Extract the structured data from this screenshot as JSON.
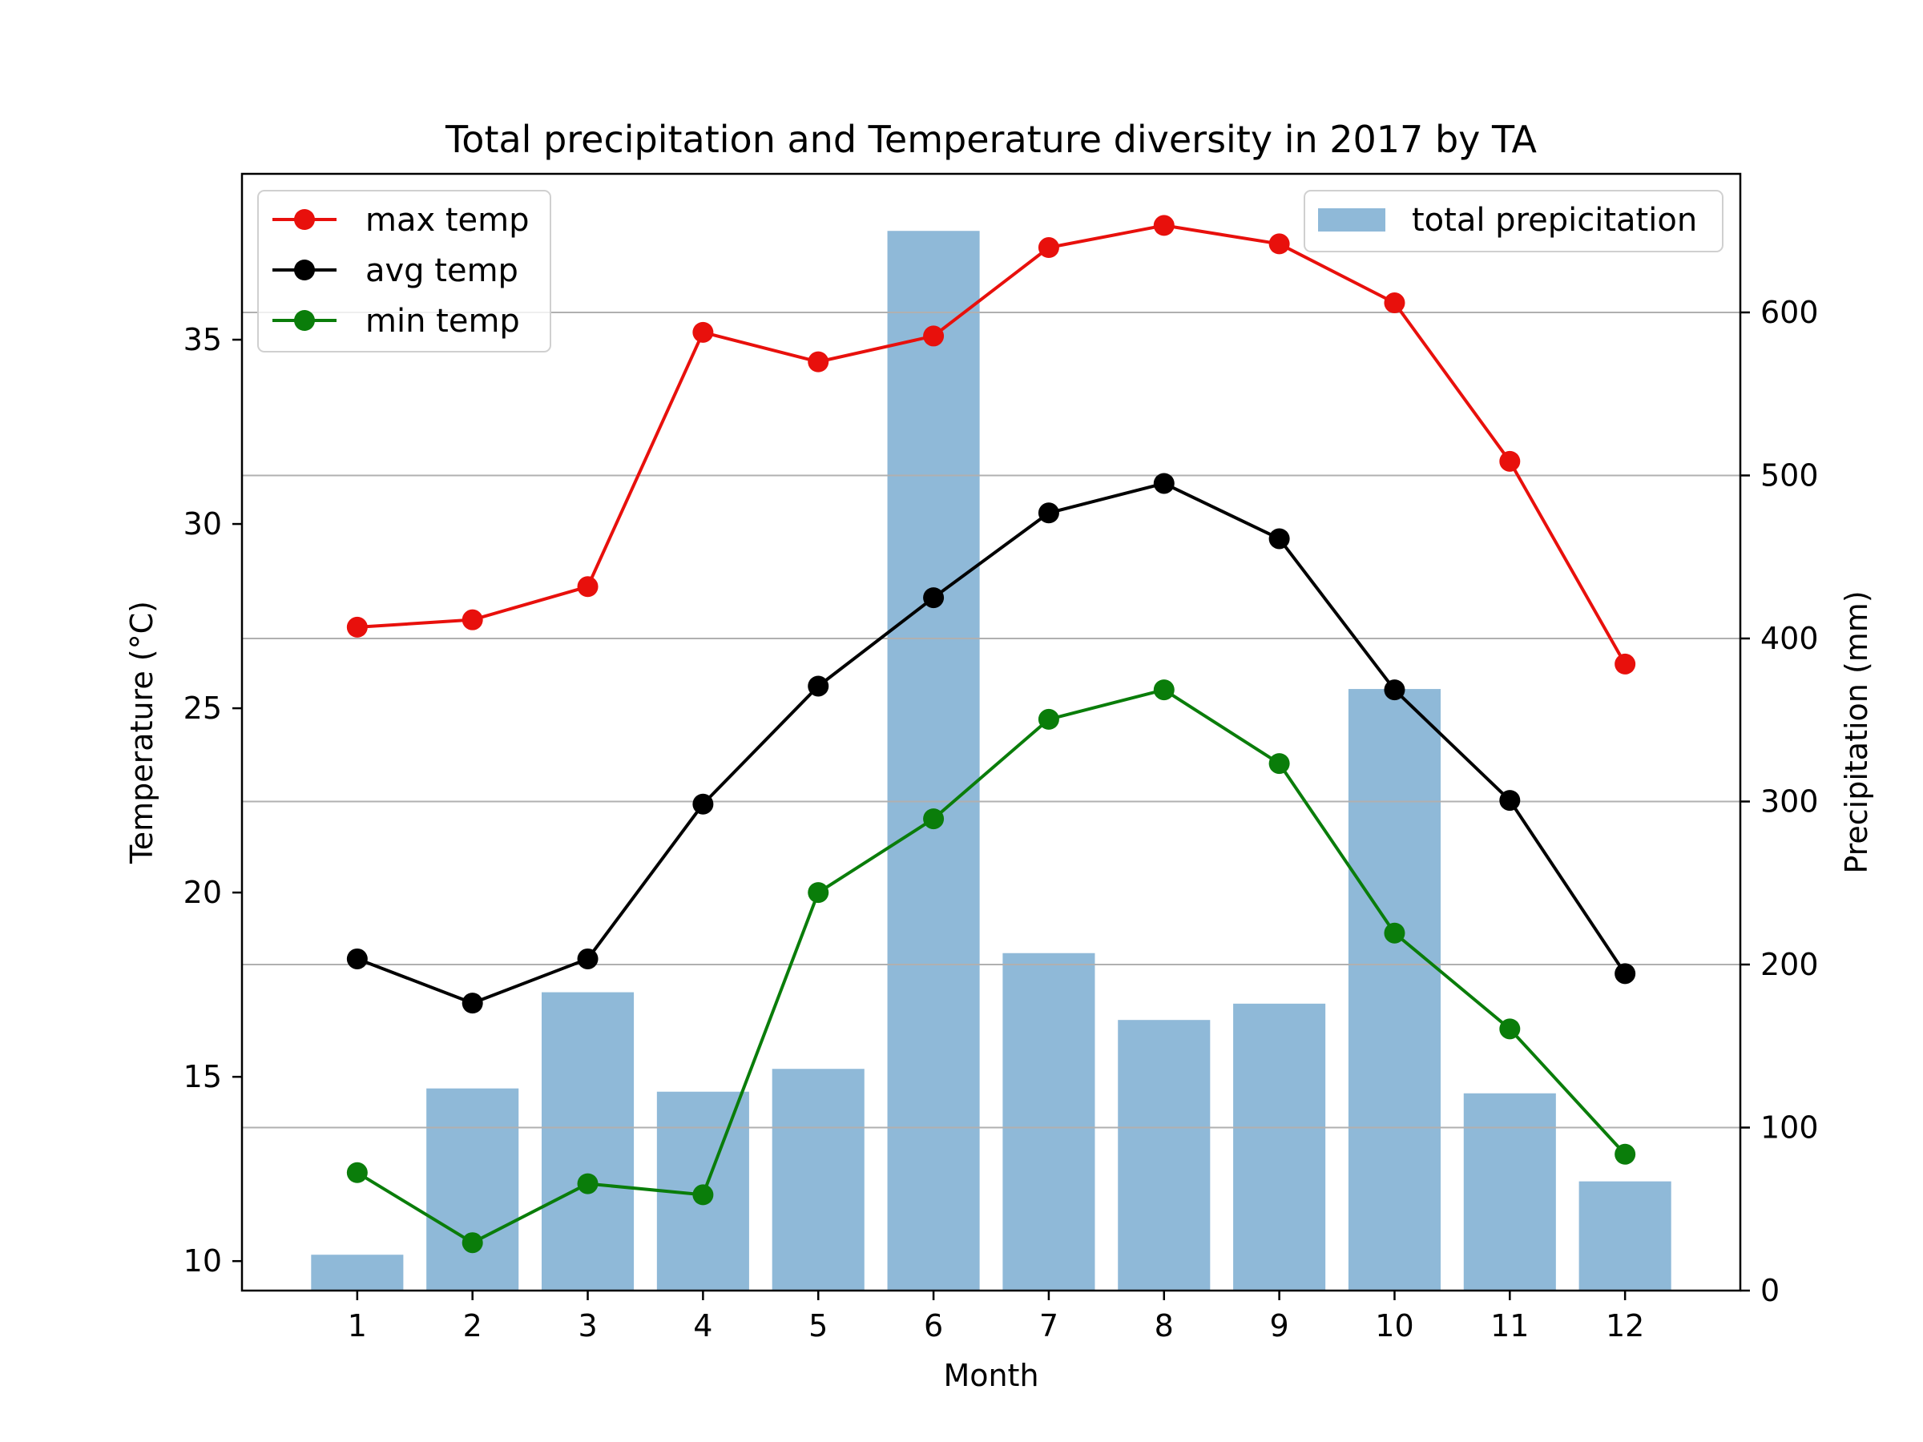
{
  "chart_data": {
    "type": "bar+line",
    "title": "Total precipitation and Temperature diversity in 2017 by TA",
    "xlabel": "Month",
    "ylabel_left": "Temperature (°C)",
    "ylabel_right": "Precipitation (mm)",
    "x": [
      1,
      2,
      3,
      4,
      5,
      6,
      7,
      8,
      9,
      10,
      11,
      12
    ],
    "x_tick_labels": [
      "1",
      "2",
      "3",
      "4",
      "5",
      "6",
      "7",
      "8",
      "9",
      "10",
      "11",
      "12"
    ],
    "xlim": [
      0,
      13
    ],
    "ylim_left": [
      9.2,
      39.5
    ],
    "ylim_right": [
      0,
      685
    ],
    "y_left_ticks": [
      10,
      15,
      20,
      25,
      30,
      35
    ],
    "y_right_ticks": [
      0,
      100,
      200,
      300,
      400,
      500,
      600
    ],
    "grid": "horizontal lines at right-axis ticks",
    "bars": {
      "name": "total prepicitation",
      "axis": "right",
      "color": "#8fb9d8",
      "values": [
        22,
        124,
        183,
        122,
        136,
        650,
        207,
        166,
        176,
        369,
        121,
        67
      ]
    },
    "series": [
      {
        "name": "max temp",
        "axis": "left",
        "color": "#e8100c",
        "values": [
          27.2,
          27.4,
          28.3,
          35.2,
          34.4,
          35.1,
          37.5,
          38.1,
          37.6,
          36.0,
          31.7,
          26.2
        ]
      },
      {
        "name": "avg temp",
        "axis": "left",
        "color": "#000000",
        "values": [
          18.2,
          17.0,
          18.2,
          22.4,
          25.6,
          28.0,
          30.3,
          31.1,
          29.6,
          25.5,
          22.5,
          17.8
        ]
      },
      {
        "name": "min temp",
        "axis": "left",
        "color": "#0a7d0a",
        "values": [
          12.4,
          10.5,
          12.1,
          11.8,
          20.0,
          22.0,
          24.7,
          25.5,
          23.5,
          18.9,
          16.3,
          12.9
        ]
      }
    ],
    "legend_lines_position": "upper-left",
    "legend_bars_position": "upper-right"
  }
}
